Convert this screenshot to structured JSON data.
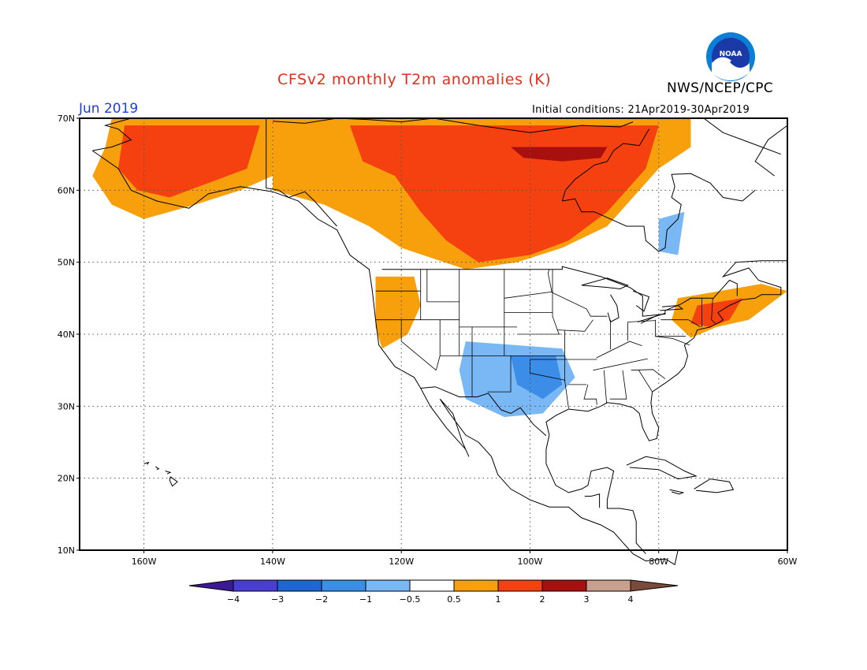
{
  "header": {
    "title": "CFSv2 monthly T2m anomalies (K)",
    "month": "Jun 2019",
    "agency": "NWS/NCEP/CPC",
    "initial_conditions": "Initial conditions: 21Apr2019-30Apr2019",
    "logo_text": "NOAA"
  },
  "map": {
    "lat_labels": [
      "70N",
      "60N",
      "50N",
      "40N",
      "30N",
      "20N",
      "10N"
    ],
    "lon_labels": [
      "160W",
      "140W",
      "120W",
      "100W",
      "80W",
      "60W"
    ],
    "lat_range": [
      10,
      70
    ],
    "lon_range": [
      -170,
      -60
    ]
  },
  "legend": {
    "colors": [
      "#3c1a96",
      "#4a3dd4",
      "#1f66d4",
      "#3b8de8",
      "#7ab8f5",
      "#ffffff",
      "#f7a00c",
      "#f5400f",
      "#a80f0f",
      "#c9a08e",
      "#7a4a3a"
    ],
    "labels": [
      "−4",
      "−3",
      "−2",
      "−1",
      "−0.5",
      "0.5",
      "1",
      "2",
      "3",
      "4"
    ]
  }
}
